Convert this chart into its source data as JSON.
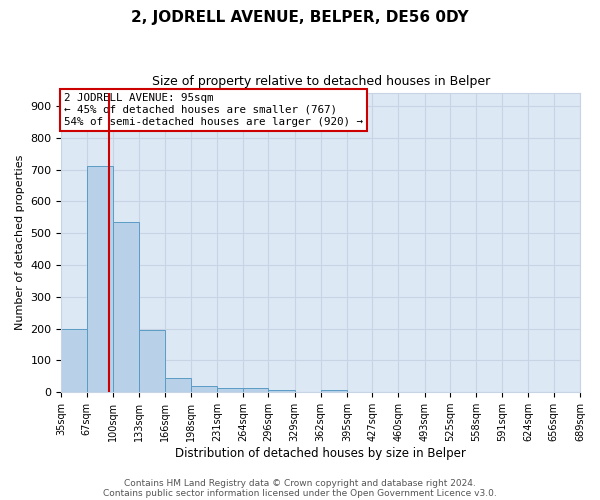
{
  "title": "2, JODRELL AVENUE, BELPER, DE56 0DY",
  "subtitle": "Size of property relative to detached houses in Belper",
  "xlabel": "Distribution of detached houses by size in Belper",
  "ylabel": "Number of detached properties",
  "footer1": "Contains HM Land Registry data © Crown copyright and database right 2024.",
  "footer2": "Contains public sector information licensed under the Open Government Licence v3.0.",
  "bin_edges": [
    35,
    67,
    100,
    133,
    166,
    198,
    231,
    264,
    296,
    329,
    362,
    395,
    427,
    460,
    493,
    525,
    558,
    591,
    624,
    656,
    689
  ],
  "bar_heights": [
    200,
    710,
    535,
    195,
    45,
    18,
    14,
    12,
    8,
    0,
    8,
    0,
    0,
    0,
    0,
    0,
    0,
    0,
    0,
    0
  ],
  "property_size": 95,
  "bar_color": "#b8d0e8",
  "bar_edge_color": "#5a9cc5",
  "red_line_color": "#cc0000",
  "annotation_text": "2 JODRELL AVENUE: 95sqm\n← 45% of detached houses are smaller (767)\n54% of semi-detached houses are larger (920) →",
  "annotation_box_color": "#ffffff",
  "annotation_box_edge_color": "#cc0000",
  "grid_color": "#c8d4e4",
  "plot_bg_color": "#dce8f4",
  "fig_bg_color": "#ffffff",
  "ylim": [
    0,
    940
  ],
  "yticks": [
    0,
    100,
    200,
    300,
    400,
    500,
    600,
    700,
    800,
    900
  ]
}
